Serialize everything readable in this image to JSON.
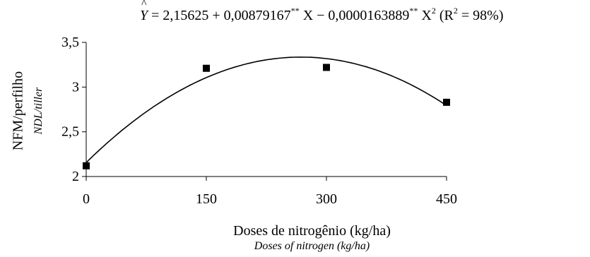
{
  "equation": {
    "lhs": "Y",
    "rhs_part1": " = 2,15625 + 0,00879167",
    "sig1": "**",
    "rhs_part2": " X − 0,0000163889",
    "sig2": "**",
    "rhs_part3": " X",
    "exp": "2",
    "r2_open": " (R",
    "r2_exp": "2",
    "r2_close": " = 98%)"
  },
  "chart_data": {
    "type": "scatter",
    "title": "",
    "xlabel": "Doses de nitrogênio (kg/ha)",
    "xlabel_secondary": "Doses of nitrogen (kg/ha)",
    "ylabel": "NFM/perfilho",
    "ylabel_secondary": "NDL/tiller",
    "xlim": [
      0,
      450
    ],
    "ylim": [
      2,
      3.5
    ],
    "xticks": [
      0,
      150,
      300,
      450
    ],
    "xtick_labels": [
      "0",
      "150",
      "300",
      "450"
    ],
    "yticks": [
      2,
      2.5,
      3,
      3.5
    ],
    "ytick_labels": [
      "2",
      "2,5",
      "3",
      "3,5"
    ],
    "grid": false,
    "series": [
      {
        "kind": "observed",
        "marker": "square",
        "x": [
          0,
          150,
          300,
          450
        ],
        "y": [
          2.12,
          3.21,
          3.22,
          2.83
        ]
      },
      {
        "kind": "fitted",
        "marker": "line",
        "intercept": 2.15625,
        "linear": 0.00879167,
        "quadratic": -1.63889e-05
      }
    ],
    "colors": {
      "markers": "#000000",
      "line": "#000000",
      "axes": "#000000"
    }
  }
}
